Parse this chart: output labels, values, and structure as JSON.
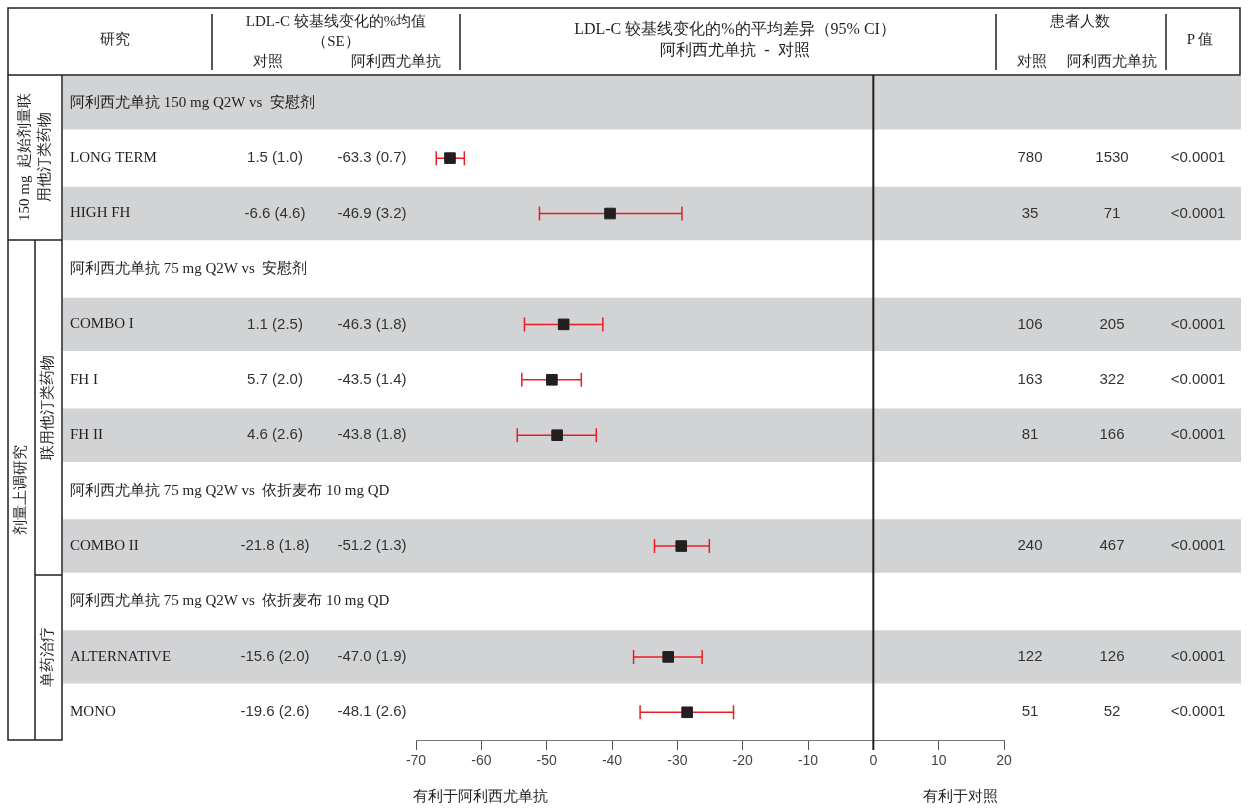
{
  "chart_data": {
    "type": "scatter",
    "orientation": "horizontal",
    "title": "LDL-C 较基线变化的%的平均差异（95% CI）",
    "subtitle": "阿利西尤单抗  -  对照",
    "categories": [
      "阿利西尤单抗 150 mg Q2W vs  安慰剂",
      "LONG TERM",
      "HIGH FH",
      "阿利西尤单抗 75 mg Q2W vs  安慰剂",
      "COMBO I",
      "FH I",
      "FH II",
      "阿利西尤单抗 75 mg Q2W vs  依折麦布 10 mg QD",
      "COMBO II",
      "阿利西尤单抗 75 mg Q2W vs  依折麦布 10 mg QD",
      "ALTERNATIVE",
      "MONO"
    ],
    "series": [
      {
        "color": "#231f20",
        "values": [
          null,
          -64.8,
          -40.3,
          null,
          -47.4,
          -49.2,
          -48.4,
          null,
          -29.4,
          null,
          -31.4,
          -28.5
        ],
        "errors": [
          null,
          [
            -66.9,
            -62.6
          ],
          [
            -51.1,
            -29.3
          ],
          null,
          [
            -53.4,
            -41.4
          ],
          [
            -53.8,
            -44.7
          ],
          [
            -54.5,
            -42.4
          ],
          null,
          [
            -33.5,
            -25.1
          ],
          null,
          [
            -36.7,
            -26.2
          ],
          [
            -35.7,
            -21.4
          ]
        ]
      }
    ],
    "xlim": [
      -70,
      20
    ],
    "xticks": [
      -70,
      -60,
      -50,
      -40,
      -30,
      -20,
      -10,
      0,
      10,
      20
    ],
    "ref_lines": [
      {
        "axis": "x",
        "value": 0,
        "color": "#231f20"
      }
    ],
    "marker": "square",
    "grid": false,
    "legend": false,
    "annotations": [
      "研究",
      "LDL-C 较基线变化的%均值（SE）",
      "对照",
      "阿利西尤单抗",
      "患者人数",
      "对照",
      "阿利西尤单抗",
      "P 值",
      "150 mg  起始剂量联用他汀类药物",
      "剂量上调研究",
      "联用他汀类药物",
      "单药治疗",
      "有利于阿利西尤单抗",
      "有利于对照",
      "1.5 (1.0)",
      "-63.3 (0.7)",
      "780",
      "1530",
      "<0.0001",
      "-6.6 (4.6)",
      "-46.9 (3.2)",
      "35",
      "71",
      "<0.0001",
      "1.1 (2.5)",
      "-46.3 (1.8)",
      "106",
      "205",
      "<0.0001",
      "5.7 (2.0)",
      "-43.5 (1.4)",
      "163",
      "322",
      "<0.0001",
      "4.6 (2.6)",
      "-43.8 (1.8)",
      "81",
      "166",
      "<0.0001",
      "-21.8 (1.8)",
      "-51.2 (1.3)",
      "240",
      "467",
      "<0.0001",
      "-15.6 (2.0)",
      "-47.0 (1.9)",
      "122",
      "126",
      "<0.0001",
      "-19.6 (2.6)",
      "-48.1 (2.6)",
      "51",
      "52",
      "<0.0001"
    ]
  }
}
